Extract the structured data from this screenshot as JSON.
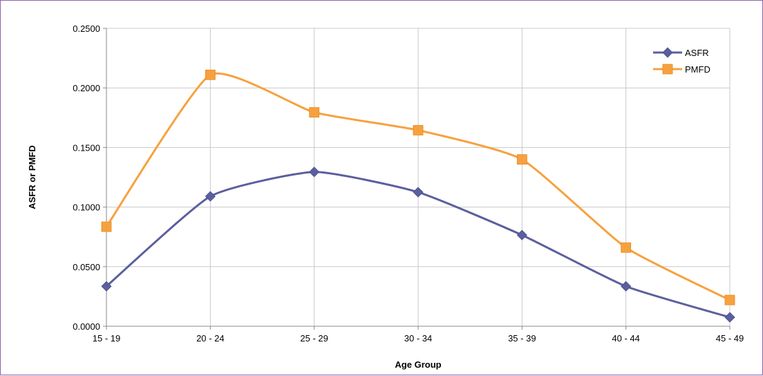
{
  "chart_data": {
    "type": "line",
    "categories": [
      "15 - 19",
      "20 - 24",
      "25 - 29",
      "30 - 34",
      "35 - 39",
      "40 - 44",
      "45 - 49"
    ],
    "series": [
      {
        "name": "ASFR",
        "values": [
          0.0335,
          0.109,
          0.1295,
          0.1125,
          0.0765,
          0.0335,
          0.0075
        ],
        "color": "#5b5f9e",
        "marker": "diamond"
      },
      {
        "name": "PMFD",
        "values": [
          0.0835,
          0.211,
          0.1795,
          0.1645,
          0.14,
          0.066,
          0.022
        ],
        "color": "#f7a13e",
        "marker": "square"
      }
    ],
    "xlabel": "Age Group",
    "ylabel": "ASFR or PMFD",
    "ylim": [
      0,
      0.25
    ],
    "yticks": [
      "0.0000",
      "0.0500",
      "0.1000",
      "0.1500",
      "0.2000",
      "0.2500"
    ],
    "ytick_values": [
      0,
      0.05,
      0.1,
      0.15,
      0.2,
      0.25
    ],
    "grid": true,
    "smooth": true,
    "legend_position": "top-right",
    "colors": {
      "border": "#8c63a8",
      "grid": "#c8c8c8",
      "axis": "#8a8a8a"
    }
  }
}
